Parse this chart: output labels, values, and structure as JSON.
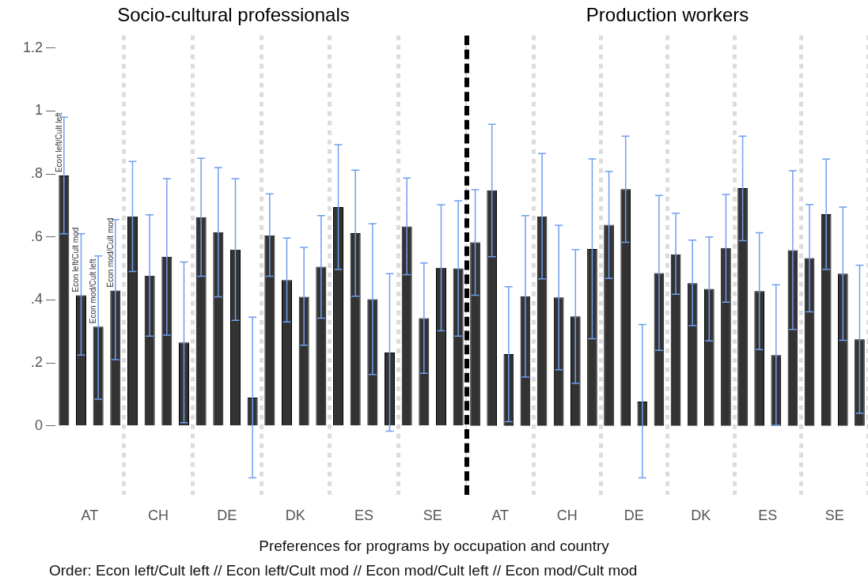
{
  "chart_data": [
    {
      "type": "bar",
      "title": "Socio-cultural professionals",
      "xlabel": "Preferences for programs by occupation and country",
      "annotations": [
        "Order: Econ left/Cult left // Econ left/Cult mod // Econ mod/Cult left // Econ mod/Cult mod"
      ],
      "categories": [
        "AT",
        "CH",
        "DE",
        "DK",
        "ES",
        "SE"
      ],
      "ylim": [
        -0.22,
        1.24
      ],
      "yticks": [
        0,
        {
          "value": 0.2,
          "label": ".2"
        },
        {
          "value": 0.4,
          "label": ".4"
        },
        {
          "value": 0.6,
          "label": ".6"
        },
        {
          "value": 0.8,
          "label": ".8"
        },
        1,
        1.2
      ],
      "grid": "x",
      "series": [
        {
          "name": "Econ left/Cult left",
          "color": "#333333",
          "values": [
            0.795,
            0.665,
            0.663,
            0.605,
            0.695,
            0.633
          ],
          "errors": [
            [
              0.61,
              0.98
            ],
            [
              0.49,
              0.84
            ],
            [
              0.475,
              0.85
            ],
            [
              0.475,
              0.737
            ],
            [
              0.497,
              0.893
            ],
            [
              0.48,
              0.787
            ]
          ]
        },
        {
          "name": "Econ left/Cult mod",
          "color": "#333333",
          "values": [
            0.415,
            0.477,
            0.615,
            0.463,
            0.612,
            0.342
          ],
          "errors": [
            [
              0.225,
              0.61
            ],
            [
              0.285,
              0.67
            ],
            [
              0.41,
              0.82
            ],
            [
              0.33,
              0.597
            ],
            [
              0.412,
              0.812
            ],
            [
              0.167,
              0.517
            ]
          ]
        },
        {
          "name": "Econ mod/Cult left",
          "color": "#333333",
          "values": [
            0.315,
            0.537,
            0.56,
            0.41,
            0.402,
            0.502
          ],
          "errors": [
            [
              0.085,
              0.54
            ],
            [
              0.288,
              0.785
            ],
            [
              0.335,
              0.785
            ],
            [
              0.256,
              0.567
            ],
            [
              0.163,
              0.642
            ],
            [
              0.302,
              0.702
            ]
          ]
        },
        {
          "name": "Econ mod/Cult mod",
          "color": "#333333",
          "values": [
            0.43,
            0.265,
            0.09,
            0.505,
            0.233,
            0.5
          ],
          "errors": [
            [
              0.21,
              0.655
            ],
            [
              0.01,
              0.52
            ],
            [
              -0.165,
              0.345
            ],
            [
              0.342,
              0.668
            ],
            [
              -0.017,
              0.483
            ],
            [
              0.285,
              0.715
            ]
          ]
        }
      ]
    },
    {
      "type": "bar",
      "title": "Production workers",
      "categories": [
        "AT",
        "CH",
        "DE",
        "DK",
        "ES",
        "SE"
      ],
      "ylim": [
        -0.22,
        1.24
      ],
      "tick_labels": "x",
      "grid": "x",
      "series": [
        {
          "color": "#333333",
          "values": [
            0.583,
            0.665,
            0.638,
            0.545,
            0.755,
            0.533
          ],
          "errors": [
            [
              0.415,
              0.75
            ],
            [
              0.467,
              0.865
            ],
            [
              0.468,
              0.808
            ],
            [
              0.418,
              0.675
            ],
            [
              0.588,
              0.92
            ],
            [
              0.362,
              0.703
            ]
          ]
        },
        {
          "color": "#333333",
          "values": [
            0.748,
            0.408,
            0.752,
            0.453,
            0.428,
            0.672
          ],
          "errors": [
            [
              0.537,
              0.958
            ],
            [
              0.178,
              0.637
            ],
            [
              0.583,
              0.92
            ],
            [
              0.318,
              0.59
            ],
            [
              0.242,
              0.613
            ],
            [
              0.497,
              0.847
            ]
          ]
        },
        {
          "color": "#333333",
          "values": [
            0.228,
            0.348,
            0.077,
            0.435,
            0.225,
            0.483
          ],
          "errors": [
            [
              0.013,
              0.442
            ],
            [
              0.135,
              0.56
            ],
            [
              -0.165,
              0.322
            ],
            [
              0.27,
              0.6
            ],
            [
              0.002,
              0.448
            ],
            [
              0.272,
              0.695
            ]
          ]
        },
        {
          "color": "#333333",
          "values": [
            0.412,
            0.562,
            0.485,
            0.565,
            0.558,
            0.275
          ],
          "errors": [
            [
              0.155,
              0.668
            ],
            [
              0.277,
              0.848
            ],
            [
              0.24,
              0.732
            ],
            [
              0.393,
              0.735
            ],
            [
              0.306,
              0.81
            ],
            [
              0.04,
              0.51
            ]
          ]
        }
      ]
    }
  ]
}
